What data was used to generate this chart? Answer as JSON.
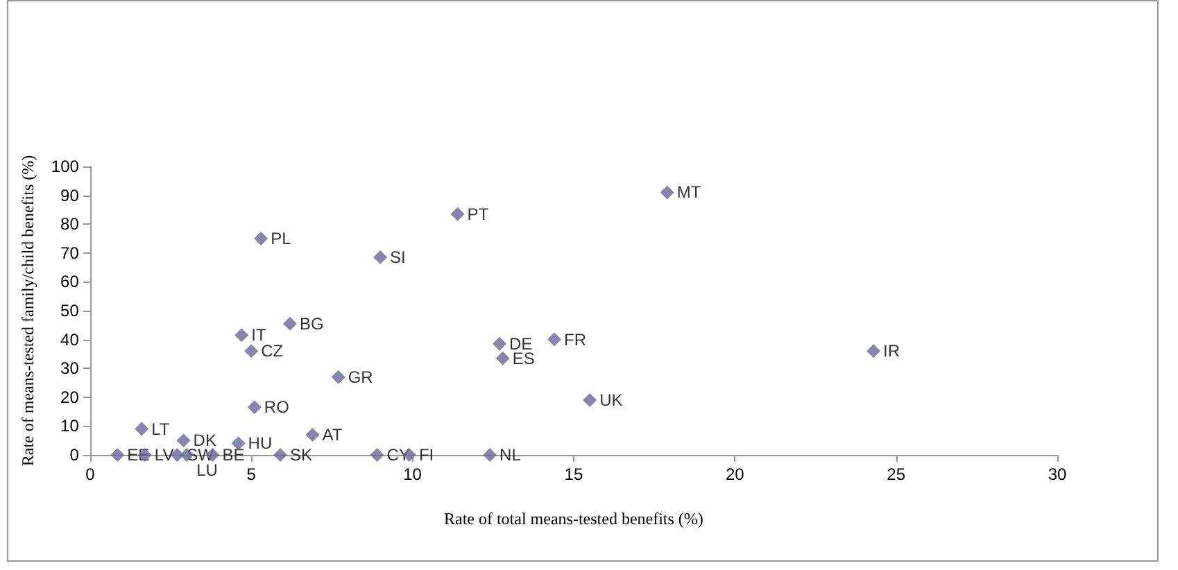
{
  "chart_data": {
    "type": "scatter",
    "xlabel": "Rate of total means-tested benefits (%)",
    "ylabel": "Rate of means-tested family/child benefits (%)",
    "series": [
      {
        "color": "#666699",
        "x": [
          0.85,
          1.7,
          2.7,
          3.0,
          3.8,
          1.6,
          2.9,
          4.6,
          4.7,
          5.0,
          5.3,
          5.1,
          6.2,
          5.9,
          6.9,
          7.7,
          9.0,
          8.9,
          9.9,
          11.4,
          12.4,
          12.7,
          12.8,
          14.4,
          15.5,
          17.9,
          24.3
        ],
        "values": [
          0,
          0,
          0,
          0,
          0,
          9,
          5,
          4,
          41.5,
          36,
          75,
          16.5,
          45.5,
          0,
          7,
          27,
          68.5,
          0,
          0,
          83.5,
          0,
          38.5,
          33.5,
          40,
          19,
          91,
          36
        ]
      }
    ],
    "annotations": [
      {
        "text": "EE",
        "x": 0.85,
        "y": 0
      },
      {
        "text": "LV",
        "x": 1.7,
        "y": 0
      },
      {
        "text": "SW",
        "x": 2.7,
        "y": 0
      },
      {
        "text": "LU",
        "x": 3.0,
        "y": 0
      },
      {
        "text": "BE",
        "x": 3.8,
        "y": 0
      },
      {
        "text": "LT",
        "x": 1.6,
        "y": 9
      },
      {
        "text": "DK",
        "x": 2.9,
        "y": 5
      },
      {
        "text": "HU",
        "x": 4.6,
        "y": 4
      },
      {
        "text": "IT",
        "x": 4.7,
        "y": 41.5
      },
      {
        "text": "CZ",
        "x": 5.0,
        "y": 36
      },
      {
        "text": "PL",
        "x": 5.3,
        "y": 75
      },
      {
        "text": "RO",
        "x": 5.1,
        "y": 16.5
      },
      {
        "text": "BG",
        "x": 6.2,
        "y": 45.5
      },
      {
        "text": "SK",
        "x": 5.9,
        "y": 0
      },
      {
        "text": "AT",
        "x": 6.9,
        "y": 7
      },
      {
        "text": "GR",
        "x": 7.7,
        "y": 27
      },
      {
        "text": "SI",
        "x": 9.0,
        "y": 68.5
      },
      {
        "text": "CY",
        "x": 8.9,
        "y": 0
      },
      {
        "text": "FI",
        "x": 9.9,
        "y": 0
      },
      {
        "text": "PT",
        "x": 11.4,
        "y": 83.5
      },
      {
        "text": "NL",
        "x": 12.4,
        "y": 0
      },
      {
        "text": "DE",
        "x": 12.7,
        "y": 38.5
      },
      {
        "text": "ES",
        "x": 12.8,
        "y": 33.5
      },
      {
        "text": "FR",
        "x": 14.4,
        "y": 40
      },
      {
        "text": "UK",
        "x": 15.5,
        "y": 19
      },
      {
        "text": "MT",
        "x": 17.9,
        "y": 91
      },
      {
        "text": "IR",
        "x": 24.3,
        "y": 36
      }
    ],
    "xlim": [
      0,
      30
    ],
    "xticks": [
      0,
      5,
      10,
      15,
      20,
      25,
      30
    ],
    "ylim": [
      0,
      100
    ],
    "yticks": [
      0,
      10,
      20,
      30,
      40,
      50,
      60,
      70,
      80,
      90,
      100
    ],
    "marker": "diamond",
    "grid": false
  }
}
